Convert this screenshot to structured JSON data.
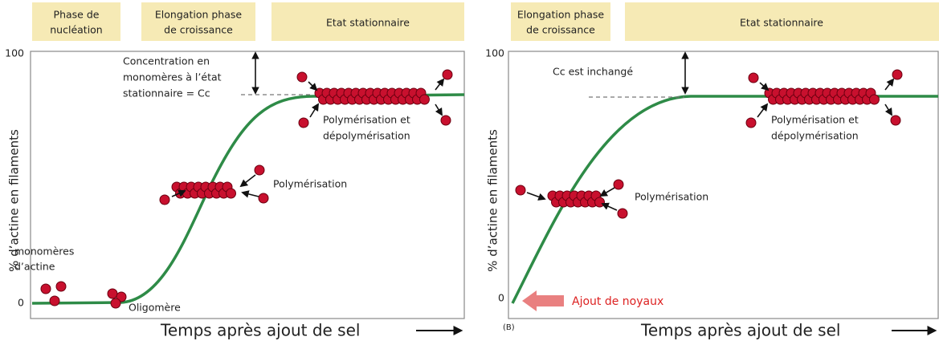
{
  "panel_a": {
    "headers": [
      [
        "Phase de",
        "nucléation"
      ],
      [
        "Elongation phase",
        "de croissance"
      ],
      [
        "Etat stationnaire"
      ]
    ],
    "y_max": 100,
    "y_min": 0,
    "y_axis_label": "% d’actine en filaments",
    "x_axis_label": "Temps après ajout de sel",
    "cc_note": [
      "Concentration en",
      "monomères à l’état",
      "stationnaire = Cc"
    ],
    "steady_note": [
      "Polymérisation et",
      "dépolymérisation"
    ],
    "polymerisation": "Polymérisation",
    "monomers": [
      "monomères",
      "d’actine"
    ],
    "oligomer": "Oligomère"
  },
  "panel_b": {
    "label": "(B)",
    "headers": [
      [
        "Elongation phase",
        "de croissance"
      ],
      [
        "Etat stationnaire"
      ]
    ],
    "y_max": 100,
    "y_min": 0,
    "y_axis_label": "% d’actine en filaments",
    "x_axis_label": "Temps après ajout de sel",
    "cc_note": "Cc est inchangé",
    "steady_note": [
      "Polymérisation et",
      "dépolymérisation"
    ],
    "polymerisation": "Polymérisation",
    "seeds": "Ajout de noyaux"
  }
}
